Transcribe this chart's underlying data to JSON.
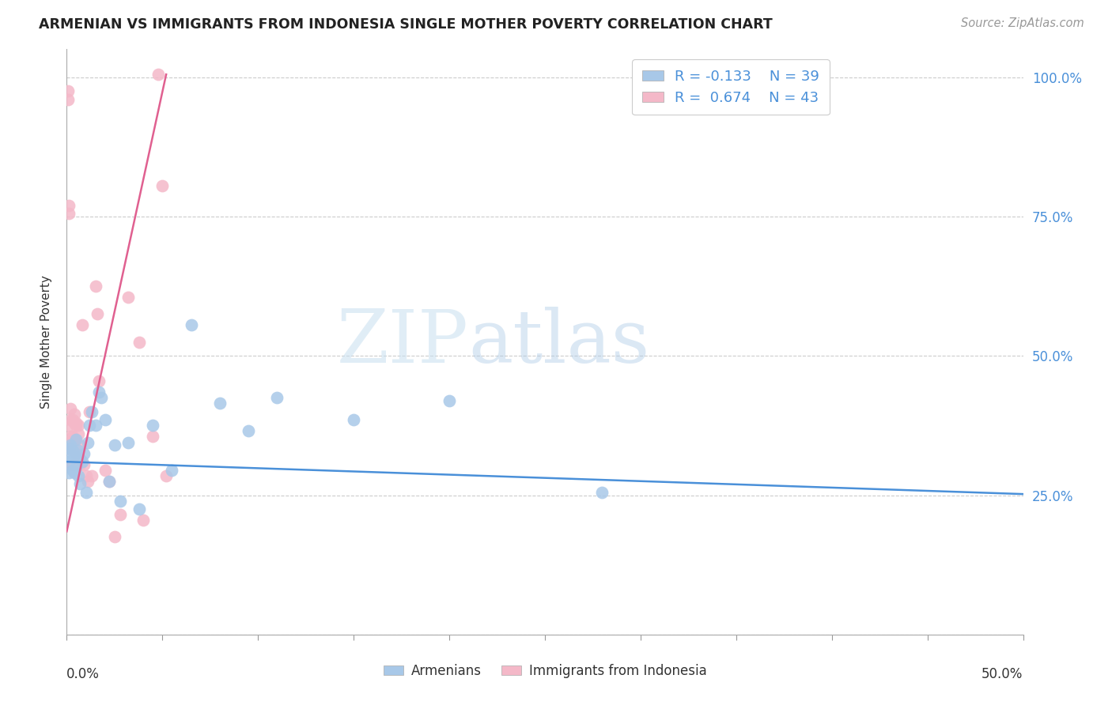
{
  "title": "ARMENIAN VS IMMIGRANTS FROM INDONESIA SINGLE MOTHER POVERTY CORRELATION CHART",
  "source": "Source: ZipAtlas.com",
  "ylabel": "Single Mother Poverty",
  "xmin": 0.0,
  "xmax": 0.5,
  "ymin": 0.0,
  "ymax": 1.05,
  "yticks": [
    0.0,
    0.25,
    0.5,
    0.75,
    1.0
  ],
  "ytick_labels": [
    "",
    "25.0%",
    "50.0%",
    "75.0%",
    "100.0%"
  ],
  "blue_color": "#a8c8e8",
  "pink_color": "#f4b8c8",
  "blue_line_color": "#4a90d9",
  "pink_line_color": "#e06090",
  "legend_R1": "R = -0.133",
  "legend_N1": "N = 39",
  "legend_R2": "R =  0.674",
  "legend_N2": "N = 43",
  "watermark_zip": "ZIP",
  "watermark_atlas": "atlas",
  "armenians_x": [
    0.001,
    0.001,
    0.001,
    0.002,
    0.002,
    0.003,
    0.003,
    0.004,
    0.004,
    0.005,
    0.005,
    0.006,
    0.006,
    0.007,
    0.007,
    0.008,
    0.009,
    0.01,
    0.011,
    0.012,
    0.013,
    0.015,
    0.017,
    0.018,
    0.02,
    0.022,
    0.025,
    0.028,
    0.032,
    0.038,
    0.045,
    0.055,
    0.065,
    0.08,
    0.095,
    0.11,
    0.15,
    0.2,
    0.28
  ],
  "armenians_y": [
    0.335,
    0.31,
    0.29,
    0.34,
    0.32,
    0.33,
    0.295,
    0.32,
    0.29,
    0.35,
    0.3,
    0.33,
    0.285,
    0.315,
    0.27,
    0.31,
    0.325,
    0.255,
    0.345,
    0.375,
    0.4,
    0.375,
    0.435,
    0.425,
    0.385,
    0.275,
    0.34,
    0.24,
    0.345,
    0.225,
    0.375,
    0.295,
    0.555,
    0.415,
    0.365,
    0.425,
    0.385,
    0.42,
    0.255
  ],
  "indonesia_x": [
    0.0005,
    0.0005,
    0.0008,
    0.001,
    0.001,
    0.001,
    0.002,
    0.002,
    0.002,
    0.002,
    0.003,
    0.003,
    0.003,
    0.004,
    0.004,
    0.004,
    0.005,
    0.005,
    0.005,
    0.006,
    0.006,
    0.007,
    0.007,
    0.008,
    0.009,
    0.01,
    0.011,
    0.012,
    0.013,
    0.015,
    0.016,
    0.017,
    0.02,
    0.022,
    0.025,
    0.028,
    0.032,
    0.038,
    0.04,
    0.045,
    0.048,
    0.05,
    0.052
  ],
  "indonesia_y": [
    0.975,
    0.96,
    0.335,
    0.77,
    0.755,
    0.375,
    0.385,
    0.355,
    0.305,
    0.405,
    0.385,
    0.355,
    0.305,
    0.395,
    0.38,
    0.35,
    0.375,
    0.325,
    0.38,
    0.375,
    0.36,
    0.34,
    0.305,
    0.555,
    0.305,
    0.285,
    0.275,
    0.4,
    0.285,
    0.625,
    0.575,
    0.455,
    0.295,
    0.275,
    0.175,
    0.215,
    0.605,
    0.525,
    0.205,
    0.355,
    1.005,
    0.805,
    0.285
  ],
  "blue_line_x0": 0.0,
  "blue_line_x1": 0.5,
  "blue_line_y0": 0.31,
  "blue_line_y1": 0.252,
  "pink_line_x0": 0.0,
  "pink_line_x1": 0.052,
  "pink_line_y0": 0.185,
  "pink_line_y1": 1.005
}
